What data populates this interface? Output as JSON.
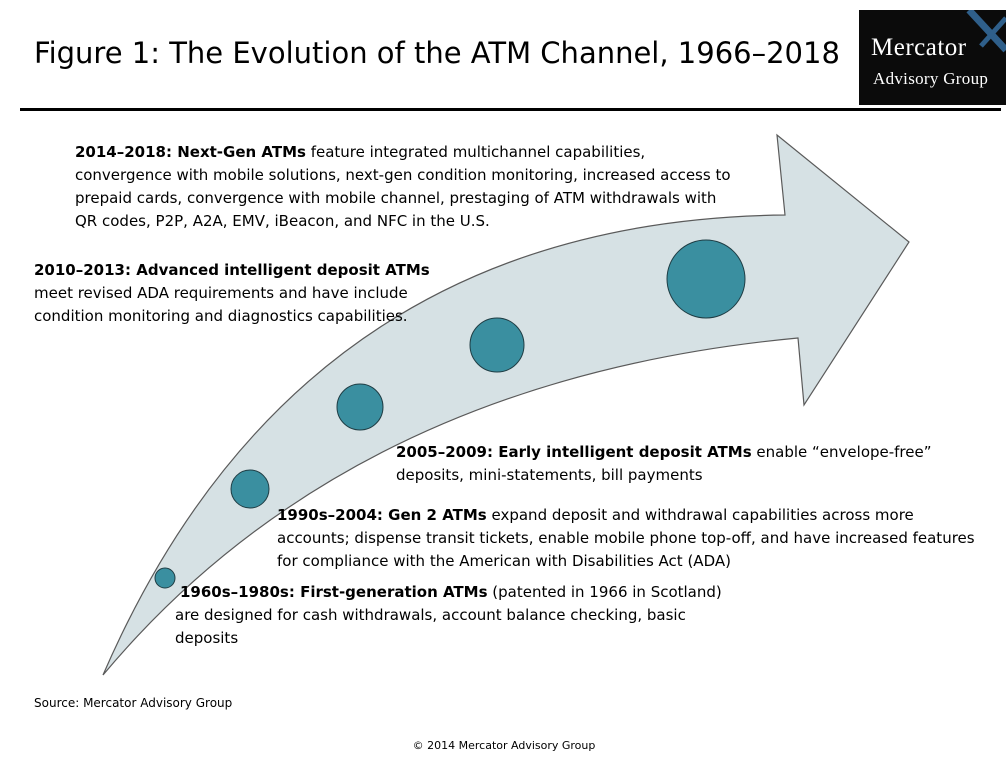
{
  "title": "Figure 1: The Evolution of the ATM Channel, 1966–2018",
  "logo": {
    "line1": "Mercator",
    "line2": "Advisory Group"
  },
  "colors": {
    "arrow_fill": "#d6e1e4",
    "arrow_stroke": "#5a5a5a",
    "milestone_fill": "#3a8fa0",
    "milestone_stroke": "#1f3d44",
    "logo_background": "#0b0b0b",
    "logo_x_mark": "#2f5f8a"
  },
  "stages": [
    {
      "period_label": "1960s–1980s: First-generation ATMs",
      "description": " (patented in 1966 in Scotland) are designed for cash withdrawals, account balance checking, basic deposits"
    },
    {
      "period_label": "1990s–2004: Gen 2 ATMs",
      "description": " expand deposit and withdrawal capabilities across more accounts; dispense transit tickets, enable mobile phone top-off, and have increased features for compliance with the American with Disabilities Act  (ADA)"
    },
    {
      "period_label": "2005–2009: Early intelligent deposit ATMs",
      "description": " enable “envelope-free” deposits, mini-statements, bill payments"
    },
    {
      "period_label": "2010–2013: Advanced intelligent deposit ATMs",
      "description": " meet revised ADA requirements and have include condition monitoring and diagnostics capabilities."
    },
    {
      "period_label": "2014–2018: Next-Gen ATMs",
      "description": " feature integrated multichannel capabilities, convergence with mobile solutions, next-gen condition monitoring, increased access to prepaid cards, convergence with mobile channel, prestaging of ATM withdrawals with QR codes, P2P, A2A, EMV, iBeacon, and NFC in the U.S."
    }
  ],
  "source": "Source: Mercator Advisory Group",
  "copyright": "© 2014 Mercator Advisory Group"
}
